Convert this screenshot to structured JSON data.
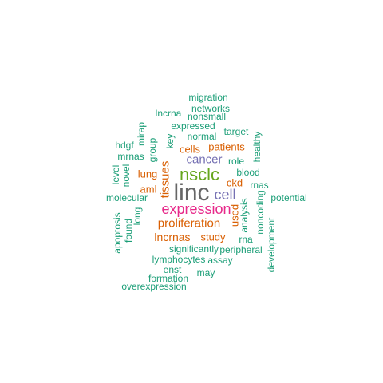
{
  "colors": {
    "teal": "#1b9e77",
    "orange": "#d95f02",
    "purple": "#7570b3",
    "magenta": "#e7298a",
    "green": "#66a61e",
    "gray": "#666666"
  },
  "words": [
    {
      "text": "linc",
      "color": "gray",
      "vertical": false
    },
    {
      "text": "nsclc",
      "color": "green",
      "vertical": false
    },
    {
      "text": "expression",
      "color": "magenta",
      "vertical": false
    },
    {
      "text": "cell",
      "color": "purple",
      "vertical": false
    },
    {
      "text": "cancer",
      "color": "purple",
      "vertical": false
    },
    {
      "text": "proliferation",
      "color": "orange",
      "vertical": false
    },
    {
      "text": "lncrnas",
      "color": "orange",
      "vertical": false
    },
    {
      "text": "patients",
      "color": "orange",
      "vertical": false
    },
    {
      "text": "tissues",
      "color": "orange",
      "vertical": true
    },
    {
      "text": "ckd",
      "color": "orange",
      "vertical": false
    },
    {
      "text": "lung",
      "color": "orange",
      "vertical": false
    },
    {
      "text": "aml",
      "color": "orange",
      "vertical": false
    },
    {
      "text": "cells",
      "color": "orange",
      "vertical": false
    },
    {
      "text": "study",
      "color": "orange",
      "vertical": false
    },
    {
      "text": "used",
      "color": "orange",
      "vertical": true
    },
    {
      "text": "migration",
      "color": "teal",
      "vertical": false
    },
    {
      "text": "networks",
      "color": "teal",
      "vertical": false
    },
    {
      "text": "lncrna",
      "color": "teal",
      "vertical": false
    },
    {
      "text": "nonsmall",
      "color": "teal",
      "vertical": false
    },
    {
      "text": "expressed",
      "color": "teal",
      "vertical": false
    },
    {
      "text": "target",
      "color": "teal",
      "vertical": false
    },
    {
      "text": "normal",
      "color": "teal",
      "vertical": false
    },
    {
      "text": "mirap",
      "color": "teal",
      "vertical": true
    },
    {
      "text": "hdgf",
      "color": "teal",
      "vertical": false
    },
    {
      "text": "key",
      "color": "teal",
      "vertical": true
    },
    {
      "text": "healthy",
      "color": "teal",
      "vertical": true
    },
    {
      "text": "mrnas",
      "color": "teal",
      "vertical": false
    },
    {
      "text": "group",
      "color": "teal",
      "vertical": true
    },
    {
      "text": "role",
      "color": "teal",
      "vertical": false
    },
    {
      "text": "blood",
      "color": "teal",
      "vertical": false
    },
    {
      "text": "level",
      "color": "teal",
      "vertical": true
    },
    {
      "text": "novel",
      "color": "teal",
      "vertical": true
    },
    {
      "text": "rnas",
      "color": "teal",
      "vertical": false
    },
    {
      "text": "molecular",
      "color": "teal",
      "vertical": false
    },
    {
      "text": "potential",
      "color": "teal",
      "vertical": false
    },
    {
      "text": "analysis",
      "color": "teal",
      "vertical": true
    },
    {
      "text": "noncoding",
      "color": "teal",
      "vertical": true
    },
    {
      "text": "long",
      "color": "teal",
      "vertical": true
    },
    {
      "text": "apoptosis",
      "color": "teal",
      "vertical": true
    },
    {
      "text": "found",
      "color": "teal",
      "vertical": true
    },
    {
      "text": "rna",
      "color": "teal",
      "vertical": false
    },
    {
      "text": "development",
      "color": "teal",
      "vertical": true
    },
    {
      "text": "significantly",
      "color": "teal",
      "vertical": false
    },
    {
      "text": "peripheral",
      "color": "teal",
      "vertical": false
    },
    {
      "text": "lymphocytes",
      "color": "teal",
      "vertical": false
    },
    {
      "text": "assay",
      "color": "teal",
      "vertical": false
    },
    {
      "text": "enst",
      "color": "teal",
      "vertical": false
    },
    {
      "text": "may",
      "color": "teal",
      "vertical": false
    },
    {
      "text": "formation",
      "color": "teal",
      "vertical": false
    },
    {
      "text": "overexpression",
      "color": "teal",
      "vertical": false
    }
  ]
}
